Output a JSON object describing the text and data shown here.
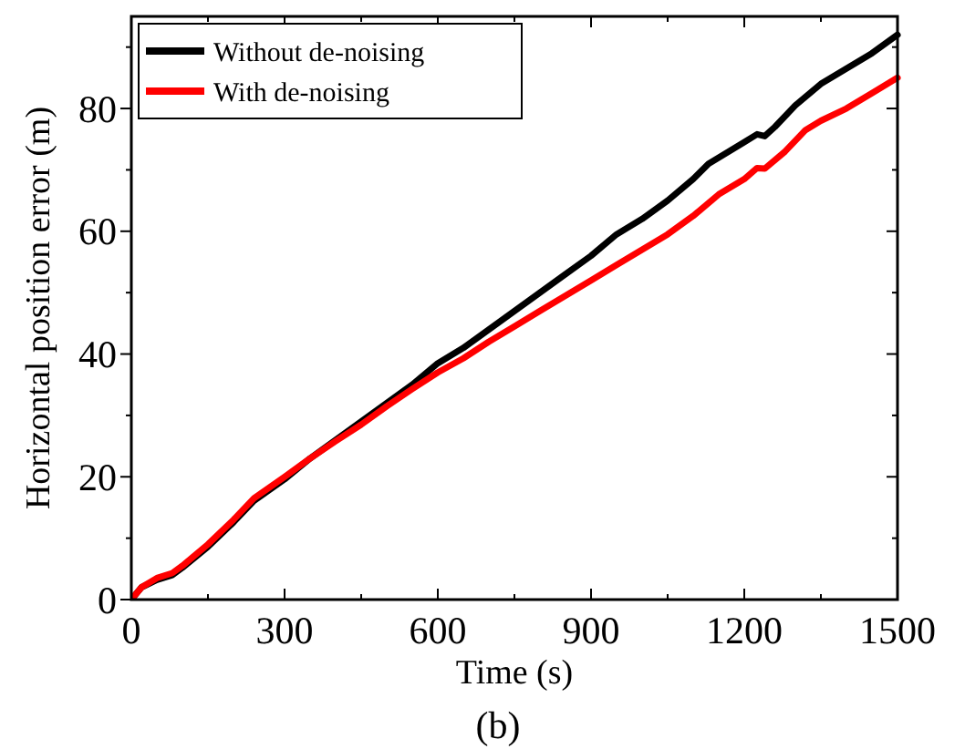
{
  "chart_data": {
    "type": "line",
    "xlabel": "Time (s)",
    "ylabel": "Horizontal position error (m)",
    "annotations": [
      "(b)"
    ],
    "xlim": [
      0,
      1500
    ],
    "ylim": [
      0,
      95
    ],
    "xticks": [
      0,
      {
        "value": 150,
        "label": null
      },
      300,
      {
        "value": 450,
        "label": null
      },
      600,
      {
        "value": 750,
        "label": null
      },
      900,
      {
        "value": 1050,
        "label": null
      },
      1200,
      {
        "value": 1350,
        "label": null
      },
      1500
    ],
    "yticks": [
      0,
      {
        "value": 10,
        "label": null
      },
      20,
      {
        "value": 30,
        "label": null
      },
      40,
      {
        "value": 50,
        "label": null
      },
      60,
      {
        "value": 70,
        "label": null
      },
      80,
      {
        "value": 90,
        "label": null
      }
    ],
    "legend": "top left",
    "grid": false,
    "marker": "none",
    "line_style": "solid",
    "series": [
      {
        "name": "Without de-noising",
        "color": "#000000",
        "x": [
          0,
          20,
          50,
          80,
          100,
          150,
          200,
          240,
          300,
          350,
          400,
          450,
          500,
          550,
          600,
          650,
          700,
          750,
          800,
          850,
          900,
          950,
          1000,
          1050,
          1100,
          1130,
          1200,
          1225,
          1240,
          1260,
          1300,
          1350,
          1400,
          1450,
          1500
        ],
        "values": [
          0,
          2,
          3.2,
          4.0,
          5.2,
          8.6,
          12.6,
          16.1,
          19.6,
          23,
          26,
          29,
          32,
          35,
          38.5,
          41,
          44,
          47,
          50,
          53,
          56,
          59.5,
          62,
          65,
          68.5,
          71,
          74.5,
          75.8,
          75.5,
          77,
          80.5,
          84,
          86.5,
          89,
          92
        ]
      },
      {
        "name": "With de-noising",
        "color": "#ff0000",
        "x": [
          0,
          20,
          50,
          80,
          100,
          150,
          200,
          240,
          300,
          350,
          400,
          450,
          500,
          550,
          600,
          650,
          700,
          750,
          800,
          850,
          900,
          950,
          1000,
          1050,
          1100,
          1150,
          1200,
          1225,
          1240,
          1280,
          1320,
          1350,
          1400,
          1450,
          1500
        ],
        "values": [
          0,
          2,
          3.5,
          4.3,
          5.5,
          9,
          13,
          16.5,
          20,
          23,
          25.8,
          28.5,
          31.5,
          34.3,
          37,
          39.3,
          42,
          44.5,
          47,
          49.5,
          52,
          54.5,
          57,
          59.5,
          62.5,
          66,
          68.5,
          70.3,
          70.2,
          73,
          76.5,
          78,
          80,
          82.5,
          85
        ]
      }
    ]
  }
}
